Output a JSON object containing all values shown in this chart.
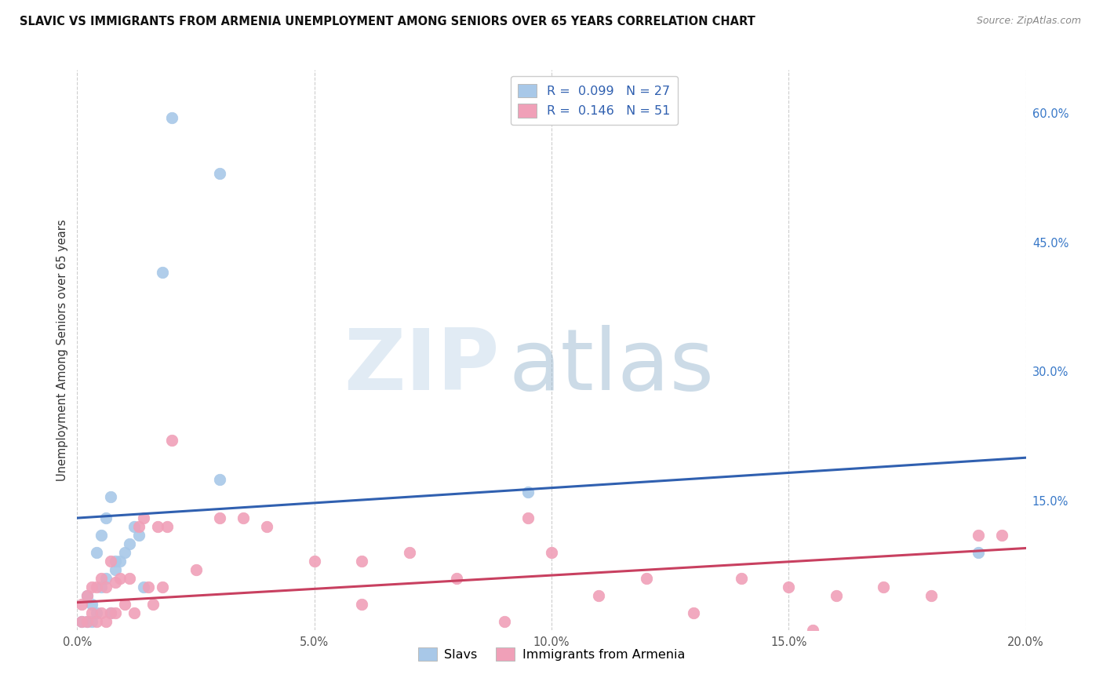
{
  "title": "SLAVIC VS IMMIGRANTS FROM ARMENIA UNEMPLOYMENT AMONG SENIORS OVER 65 YEARS CORRELATION CHART",
  "source": "Source: ZipAtlas.com",
  "ylabel": "Unemployment Among Seniors over 65 years",
  "xlim": [
    0.0,
    0.2
  ],
  "ylim": [
    0.0,
    0.65
  ],
  "xtick_vals": [
    0.0,
    0.05,
    0.1,
    0.15,
    0.2
  ],
  "xtick_labels": [
    "0.0%",
    "5.0%",
    "10.0%",
    "15.0%",
    "20.0%"
  ],
  "ytick_vals": [
    0.0,
    0.15,
    0.3,
    0.45,
    0.6
  ],
  "ytick_labels": [
    "",
    "15.0%",
    "30.0%",
    "45.0%",
    "60.0%"
  ],
  "legend_label1": "Slavs",
  "legend_label2": "Immigrants from Armenia",
  "legend_r1": "0.099",
  "legend_n1": "27",
  "legend_r2": "0.146",
  "legend_n2": "51",
  "slavs_color": "#a8c8e8",
  "slavs_line_color": "#3060b0",
  "armenia_color": "#f0a0b8",
  "armenia_line_color": "#c84060",
  "bg_color": "#ffffff",
  "grid_color": "#c8c8c8",
  "right_tick_color": "#3878c8",
  "title_color": "#111111",
  "source_color": "#888888",
  "ylabel_color": "#333333",
  "slavs_x": [
    0.02,
    0.03,
    0.018,
    0.001,
    0.002,
    0.003,
    0.004,
    0.005,
    0.006,
    0.007,
    0.008,
    0.009,
    0.01,
    0.011,
    0.012,
    0.013,
    0.014,
    0.03,
    0.095,
    0.19,
    0.002,
    0.003,
    0.004,
    0.005,
    0.006,
    0.007,
    0.008
  ],
  "slavs_y": [
    0.595,
    0.53,
    0.415,
    0.01,
    0.01,
    0.01,
    0.02,
    0.05,
    0.06,
    0.02,
    0.07,
    0.08,
    0.09,
    0.1,
    0.12,
    0.11,
    0.05,
    0.175,
    0.16,
    0.09,
    0.04,
    0.03,
    0.09,
    0.11,
    0.13,
    0.155,
    0.08
  ],
  "armenia_x": [
    0.001,
    0.001,
    0.002,
    0.002,
    0.003,
    0.003,
    0.004,
    0.004,
    0.005,
    0.005,
    0.006,
    0.006,
    0.007,
    0.007,
    0.008,
    0.008,
    0.009,
    0.01,
    0.011,
    0.012,
    0.013,
    0.014,
    0.015,
    0.016,
    0.017,
    0.018,
    0.019,
    0.02,
    0.025,
    0.03,
    0.035,
    0.04,
    0.05,
    0.06,
    0.07,
    0.08,
    0.09,
    0.095,
    0.1,
    0.11,
    0.12,
    0.13,
    0.14,
    0.15,
    0.155,
    0.16,
    0.17,
    0.18,
    0.19,
    0.195,
    0.06
  ],
  "armenia_y": [
    0.01,
    0.03,
    0.01,
    0.04,
    0.02,
    0.05,
    0.01,
    0.05,
    0.02,
    0.06,
    0.01,
    0.05,
    0.02,
    0.08,
    0.02,
    0.055,
    0.06,
    0.03,
    0.06,
    0.02,
    0.12,
    0.13,
    0.05,
    0.03,
    0.12,
    0.05,
    0.12,
    0.22,
    0.07,
    0.13,
    0.13,
    0.12,
    0.08,
    0.03,
    0.09,
    0.06,
    0.01,
    0.13,
    0.09,
    0.04,
    0.06,
    0.02,
    0.06,
    0.05,
    0.0,
    0.04,
    0.05,
    0.04,
    0.11,
    0.11,
    0.08
  ],
  "slavs_trend_x": [
    0.0,
    0.2
  ],
  "slavs_trend_y": [
    0.13,
    0.2
  ],
  "armenia_trend_x": [
    0.0,
    0.2
  ],
  "armenia_trend_y": [
    0.032,
    0.095
  ]
}
